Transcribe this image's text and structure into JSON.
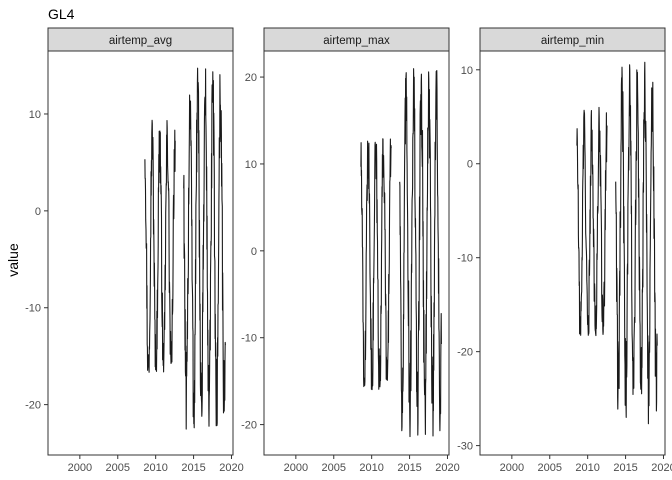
{
  "chart_data": {
    "type": "line",
    "title": "GL4",
    "xlabel": "",
    "ylabel": "value",
    "line_color": "#1a1a1a",
    "strip_fill": "#d9d9d9",
    "frame_color": "#333333",
    "grid": false,
    "legend": "none",
    "x_ticks": [
      2000,
      2005,
      2010,
      2015,
      2020
    ],
    "x_tick_labels": [
      "2000",
      "2005",
      "2010",
      "2015",
      "2020"
    ],
    "xlim": [
      1995.8,
      2020.2
    ],
    "panels": [
      {
        "name": "airtemp_avg",
        "ylim": [
          -25.2,
          16.5
        ],
        "y_ticks": [
          -20,
          -10,
          0,
          10
        ],
        "y_tick_labels": [
          "-20",
          "-10",
          "0",
          "10"
        ],
        "segments": [
          {
            "start": 2008.58,
            "end": 2012.58,
            "amp": 12.0,
            "mean": -4.8,
            "min": -16.7,
            "max": 9.5
          },
          {
            "start": 2013.7,
            "end": 2019.2,
            "amp": 15.8,
            "mean": -4.2,
            "min": -23.2,
            "max": 14.8
          }
        ]
      },
      {
        "name": "airtemp_max",
        "ylim": [
          -23.5,
          23.0
        ],
        "y_ticks": [
          -20,
          -10,
          0,
          10,
          20
        ],
        "y_tick_labels": [
          "-20",
          "-10",
          "0",
          "10",
          "20"
        ],
        "segments": [
          {
            "start": 2008.58,
            "end": 2012.58,
            "amp": 13.5,
            "mean": -1.8,
            "min": -16.0,
            "max": 13.0
          },
          {
            "start": 2013.7,
            "end": 2019.2,
            "amp": 18.0,
            "mean": 0.4,
            "min": -21.5,
            "max": 21.0
          }
        ]
      },
      {
        "name": "airtemp_min",
        "ylim": [
          -31.0,
          12.0
        ],
        "y_ticks": [
          -30,
          -20,
          -10,
          0,
          10
        ],
        "y_tick_labels": [
          "-30",
          "-20",
          "-10",
          "0",
          "10"
        ],
        "segments": [
          {
            "start": 2008.58,
            "end": 2012.58,
            "amp": 11.0,
            "mean": -7.5,
            "min": -18.3,
            "max": 7.2
          },
          {
            "start": 2013.7,
            "end": 2019.2,
            "amp": 15.5,
            "mean": -8.5,
            "min": -29.0,
            "max": 11.0
          }
        ]
      }
    ]
  }
}
